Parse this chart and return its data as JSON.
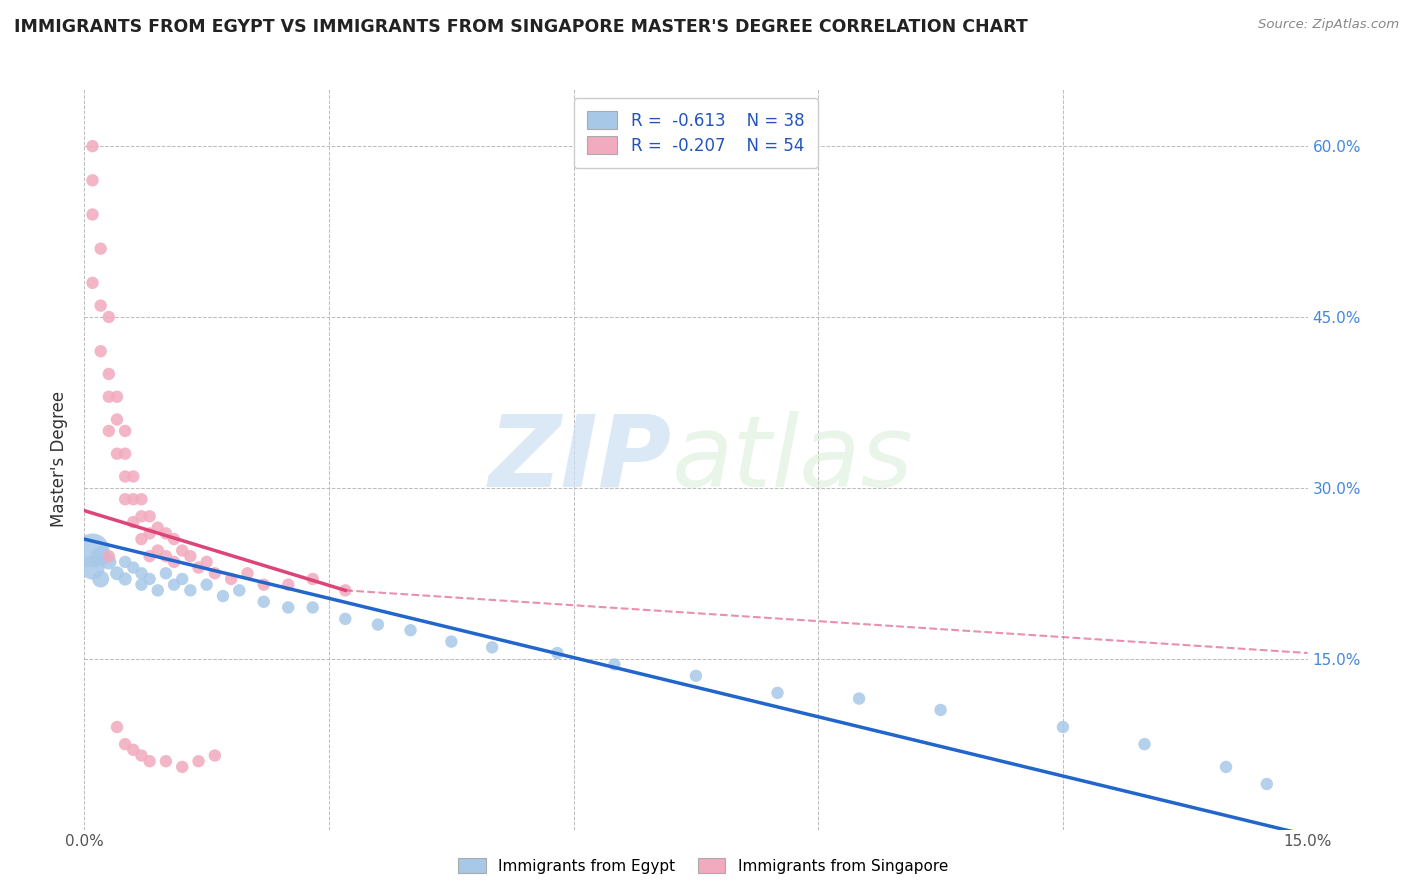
{
  "title": "IMMIGRANTS FROM EGYPT VS IMMIGRANTS FROM SINGAPORE MASTER'S DEGREE CORRELATION CHART",
  "source": "Source: ZipAtlas.com",
  "ylabel": "Master's Degree",
  "xlim": [
    0.0,
    0.15
  ],
  "ylim": [
    0.0,
    0.65
  ],
  "yticks": [
    0.0,
    0.15,
    0.3,
    0.45,
    0.6
  ],
  "yticklabels_right": [
    "",
    "15.0%",
    "30.0%",
    "45.0%",
    "60.0%"
  ],
  "xtick_left_label": "0.0%",
  "xtick_right_label": "15.0%",
  "egypt_color": "#a8c8e8",
  "singapore_color": "#f2aabe",
  "egypt_line_color": "#2266cc",
  "singapore_line_color": "#dd4477",
  "r_egypt": -0.613,
  "n_egypt": 38,
  "r_singapore": -0.207,
  "n_singapore": 54,
  "background_color": "#ffffff",
  "grid_color": "#bbbbbb",
  "egypt_scatter_x": [
    0.001,
    0.001,
    0.002,
    0.002,
    0.003,
    0.004,
    0.005,
    0.005,
    0.006,
    0.007,
    0.007,
    0.008,
    0.009,
    0.01,
    0.011,
    0.012,
    0.013,
    0.015,
    0.017,
    0.019,
    0.022,
    0.025,
    0.028,
    0.032,
    0.036,
    0.04,
    0.045,
    0.05,
    0.058,
    0.065,
    0.075,
    0.085,
    0.095,
    0.105,
    0.12,
    0.13,
    0.14,
    0.145
  ],
  "egypt_scatter_y": [
    0.245,
    0.23,
    0.24,
    0.22,
    0.235,
    0.225,
    0.22,
    0.235,
    0.23,
    0.215,
    0.225,
    0.22,
    0.21,
    0.225,
    0.215,
    0.22,
    0.21,
    0.215,
    0.205,
    0.21,
    0.2,
    0.195,
    0.195,
    0.185,
    0.18,
    0.175,
    0.165,
    0.16,
    0.155,
    0.145,
    0.135,
    0.12,
    0.115,
    0.105,
    0.09,
    0.075,
    0.055,
    0.04
  ],
  "egypt_scatter_size": [
    600,
    300,
    200,
    150,
    120,
    100,
    90,
    80,
    80,
    80,
    80,
    80,
    80,
    80,
    80,
    80,
    80,
    80,
    80,
    80,
    80,
    80,
    80,
    80,
    80,
    80,
    80,
    80,
    80,
    80,
    80,
    80,
    80,
    80,
    80,
    80,
    80,
    80
  ],
  "singapore_scatter_x": [
    0.001,
    0.001,
    0.001,
    0.001,
    0.002,
    0.002,
    0.002,
    0.003,
    0.003,
    0.003,
    0.003,
    0.004,
    0.004,
    0.004,
    0.005,
    0.005,
    0.005,
    0.005,
    0.006,
    0.006,
    0.006,
    0.007,
    0.007,
    0.007,
    0.008,
    0.008,
    0.008,
    0.009,
    0.009,
    0.01,
    0.01,
    0.011,
    0.011,
    0.012,
    0.013,
    0.014,
    0.015,
    0.016,
    0.018,
    0.02,
    0.022,
    0.025,
    0.028,
    0.032,
    0.003,
    0.004,
    0.005,
    0.006,
    0.007,
    0.008,
    0.01,
    0.012,
    0.014,
    0.016
  ],
  "singapore_scatter_y": [
    0.6,
    0.57,
    0.54,
    0.48,
    0.51,
    0.46,
    0.42,
    0.45,
    0.4,
    0.38,
    0.35,
    0.38,
    0.36,
    0.33,
    0.35,
    0.33,
    0.31,
    0.29,
    0.31,
    0.29,
    0.27,
    0.29,
    0.275,
    0.255,
    0.275,
    0.26,
    0.24,
    0.265,
    0.245,
    0.26,
    0.24,
    0.255,
    0.235,
    0.245,
    0.24,
    0.23,
    0.235,
    0.225,
    0.22,
    0.225,
    0.215,
    0.215,
    0.22,
    0.21,
    0.24,
    0.09,
    0.075,
    0.07,
    0.065,
    0.06,
    0.06,
    0.055,
    0.06,
    0.065
  ],
  "singapore_scatter_size": [
    80,
    80,
    80,
    80,
    80,
    80,
    80,
    80,
    80,
    80,
    80,
    80,
    80,
    80,
    80,
    80,
    80,
    80,
    80,
    80,
    80,
    80,
    80,
    80,
    80,
    80,
    80,
    80,
    80,
    80,
    80,
    80,
    80,
    80,
    80,
    80,
    80,
    80,
    80,
    80,
    80,
    80,
    80,
    80,
    80,
    80,
    80,
    80,
    80,
    80,
    80,
    80,
    80,
    80
  ],
  "egypt_line_x0": 0.0,
  "egypt_line_y0": 0.255,
  "egypt_line_x1": 0.15,
  "egypt_line_y1": -0.005,
  "singapore_line_x0": 0.0,
  "singapore_line_y0": 0.28,
  "singapore_line_x1": 0.032,
  "singapore_line_y1": 0.21,
  "dashed_line_x0": 0.032,
  "dashed_line_y0": 0.21,
  "dashed_line_x1": 0.15,
  "dashed_line_y1": 0.155
}
